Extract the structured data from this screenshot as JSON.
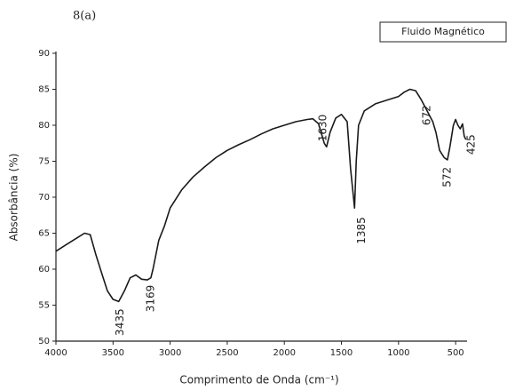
{
  "chart_data": {
    "type": "line",
    "title": "8(a)",
    "x_label": "Comprimento de Onda (cm⁻¹)",
    "y_label": "Absorbância (%)",
    "series": [
      {
        "name": "Fluido Magnético",
        "color": "#1a1a1a",
        "x": [
          4000,
          3900,
          3800,
          3750,
          3700,
          3650,
          3600,
          3550,
          3500,
          3450,
          3400,
          3350,
          3300,
          3250,
          3200,
          3169,
          3150,
          3100,
          3050,
          3000,
          2900,
          2800,
          2700,
          2600,
          2500,
          2400,
          2300,
          2200,
          2100,
          2000,
          1900,
          1800,
          1750,
          1700,
          1650,
          1630,
          1600,
          1550,
          1500,
          1450,
          1420,
          1385,
          1370,
          1350,
          1300,
          1200,
          1100,
          1000,
          950,
          900,
          850,
          800,
          750,
          700,
          672,
          640,
          600,
          572,
          550,
          520,
          500,
          480,
          460,
          440,
          425,
          410
        ],
        "values": [
          62.5,
          63.5,
          64.5,
          65.0,
          64.8,
          62,
          59.5,
          57,
          55.8,
          55.5,
          57,
          58.8,
          59.2,
          58.6,
          58.5,
          58.8,
          60,
          64,
          66,
          68.5,
          71,
          72.8,
          74.2,
          75.5,
          76.5,
          77.3,
          78,
          78.8,
          79.5,
          80,
          80.5,
          80.8,
          80.9,
          80.2,
          77.5,
          77,
          79,
          81,
          81.5,
          80.5,
          74,
          68.5,
          75,
          80,
          82,
          83,
          83.5,
          84,
          84.6,
          85,
          84.8,
          83.5,
          82,
          80.5,
          79,
          76.5,
          75.5,
          75.2,
          77,
          80,
          80.8,
          80,
          79.5,
          80.2,
          78.5,
          78
        ]
      }
    ],
    "annotations": [
      "3435",
      "3169",
      "1630",
      "1385",
      "672",
      "572",
      "425"
    ],
    "xlim": [
      4000,
      400
    ],
    "xticks": [
      4000,
      3500,
      3000,
      2500,
      2000,
      1500,
      1000,
      500
    ],
    "ylim": [
      50,
      90
    ],
    "yticks": [
      50,
      55,
      60,
      65,
      70,
      75,
      80,
      85,
      90
    ],
    "legend": "top-right"
  }
}
